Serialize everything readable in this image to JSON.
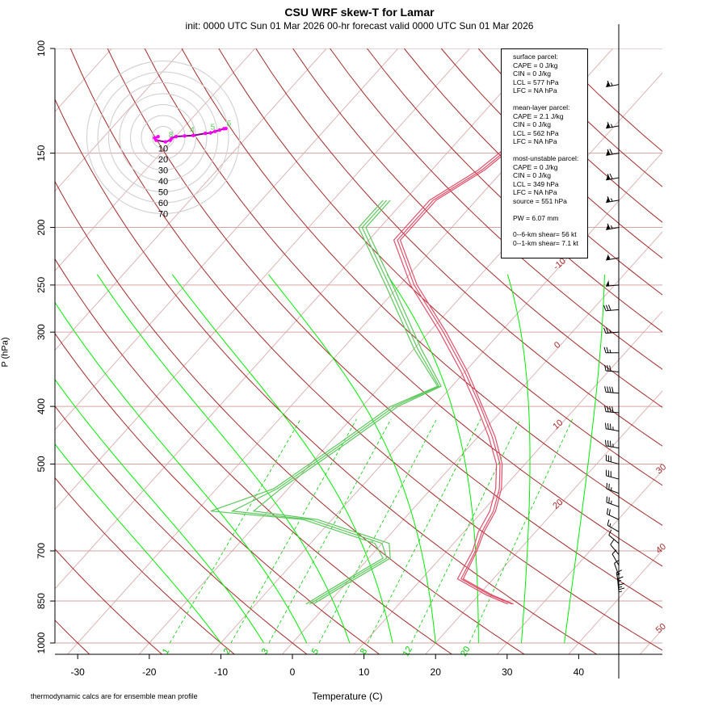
{
  "header": {
    "title": "CSU WRF skew-T for Lamar",
    "subtitle": "init: 0000 UTC Sun 01 Mar 2026     00-hr forecast valid 0000 UTC Sun 01 Mar 2026"
  },
  "footnote": "thermodynamic calcs are for ensemble mean profile",
  "info": {
    "surface_header": "surface parcel:",
    "surface_cape": "CAPE = 0 J/kg",
    "surface_cin": "CIN = 0 J/kg",
    "surface_lcl": "LCL = 577 hPa",
    "surface_lfc": "LFC = NA hPa",
    "ml_header": "mean-layer parcel:",
    "ml_cape": "CAPE = 2.1 J/kg",
    "ml_cin": "CIN = 0 J/kg",
    "ml_lcl": "LCL = 562 hPa",
    "ml_lfc": "LFC = NA hPa",
    "mu_header": "most-unstable parcel:",
    "mu_cape": "CAPE = 0 J/kg",
    "mu_cin": "CIN = 0 J/kg",
    "mu_lcl": "LCL = 349 hPa",
    "mu_lfc": "LFC = NA hPa",
    "mu_source": "source = 551 hPa",
    "pw": "PW =  6.07 mm",
    "shear06": "0--6-km shear= 56 kt",
    "shear01": "0--1-km shear= 7.1 kt"
  },
  "colors": {
    "isobar": "#d6a3a3",
    "isotherm": "#d6a3a3",
    "dry_adiabat": "#a52a2a",
    "moist_adiabat": "#00ee00",
    "mixing_ratio": "#00cc00",
    "temperature": "#e0506a",
    "dewpoint": "#5cc85c",
    "hodo_ring": "#cccccc",
    "hodo_trace": "#8b008b",
    "hodo_point": "#ff00ff"
  },
  "chart_data": {
    "type": "line",
    "xlabel": "Temperature (C)",
    "ylabel": "P (hPa)",
    "x_ticks": [
      -30,
      -20,
      -10,
      0,
      10,
      20,
      30,
      40
    ],
    "y_ticks": [
      100,
      150,
      200,
      250,
      300,
      400,
      500,
      700,
      850,
      1000
    ],
    "isotherm_labels": [
      "-10",
      "0",
      "10",
      "20",
      "30",
      "40",
      "50"
    ],
    "mixing_ratio_labels": [
      "1",
      "2",
      "3",
      "5",
      "8",
      "12",
      "20"
    ],
    "series": [
      {
        "profile": [
          [
            860,
            25.8
          ],
          [
            830,
            21.5
          ],
          [
            780,
            15.5
          ],
          [
            700,
            14
          ],
          [
            650,
            12.5
          ],
          [
            600,
            11.5
          ],
          [
            550,
            9.5
          ],
          [
            500,
            6.5
          ],
          [
            450,
            2
          ],
          [
            400,
            -3.5
          ],
          [
            350,
            -10
          ],
          [
            300,
            -18
          ],
          [
            250,
            -28
          ],
          [
            210,
            -36
          ],
          [
            180,
            -36
          ],
          [
            160,
            -33
          ],
          [
            130,
            -30.5
          ],
          [
            115,
            -30
          ]
        ]
      },
      {
        "profile": [
          [
            860,
            25.2
          ],
          [
            830,
            21
          ],
          [
            780,
            15
          ],
          [
            700,
            13.6
          ],
          [
            650,
            12
          ],
          [
            600,
            11
          ],
          [
            550,
            9
          ],
          [
            500,
            6
          ],
          [
            450,
            1.5
          ],
          [
            400,
            -4
          ],
          [
            350,
            -10.5
          ],
          [
            300,
            -18.5
          ],
          [
            250,
            -28.5
          ],
          [
            210,
            -36.5
          ],
          [
            180,
            -36.5
          ],
          [
            160,
            -33.5
          ],
          [
            130,
            -31
          ],
          [
            115,
            -30.5
          ]
        ]
      },
      {
        "profile": [
          [
            860,
            26
          ],
          [
            830,
            21.8
          ],
          [
            780,
            15.8
          ],
          [
            700,
            14.2
          ],
          [
            650,
            12.8
          ],
          [
            600,
            11.8
          ],
          [
            550,
            9.8
          ],
          [
            500,
            6.8
          ],
          [
            450,
            2.4
          ],
          [
            400,
            -3.2
          ],
          [
            350,
            -9.6
          ],
          [
            300,
            -17.6
          ],
          [
            250,
            -27.6
          ],
          [
            210,
            -35.6
          ],
          [
            180,
            -35.6
          ],
          [
            160,
            -32.6
          ],
          [
            130,
            -30.2
          ],
          [
            115,
            -29.6
          ]
        ]
      },
      {
        "profile": [
          [
            860,
            -2
          ],
          [
            800,
            0
          ],
          [
            720,
            3
          ],
          [
            680,
            1
          ],
          [
            620,
            -12
          ],
          [
            600,
            -22
          ],
          [
            550,
            -21
          ],
          [
            460,
            -17.5
          ],
          [
            400,
            -15
          ],
          [
            370,
            -11.5
          ],
          [
            320,
            -19
          ],
          [
            250,
            -31
          ],
          [
            200,
            -42
          ],
          [
            180,
            -42
          ]
        ]
      },
      {
        "profile": [
          [
            860,
            -3
          ],
          [
            800,
            -1
          ],
          [
            720,
            2
          ],
          [
            680,
            -1
          ],
          [
            620,
            -14
          ],
          [
            600,
            -28
          ],
          [
            550,
            -22
          ],
          [
            460,
            -18.5
          ],
          [
            400,
            -16
          ],
          [
            370,
            -12
          ],
          [
            320,
            -20
          ],
          [
            250,
            -32
          ],
          [
            200,
            -43
          ],
          [
            180,
            -43
          ]
        ]
      },
      {
        "profile": [
          [
            860,
            -2.5
          ],
          [
            800,
            -0.5
          ],
          [
            720,
            2.5
          ],
          [
            680,
            0
          ],
          [
            620,
            -13
          ],
          [
            600,
            -25
          ],
          [
            550,
            -21.5
          ],
          [
            460,
            -18
          ],
          [
            400,
            -15.5
          ],
          [
            370,
            -11.8
          ],
          [
            320,
            -19.5
          ],
          [
            250,
            -31.5
          ],
          [
            200,
            -42.5
          ],
          [
            180,
            -42.5
          ]
        ]
      }
    ],
    "wind_barbs": [
      {
        "p": 115,
        "kt": 65,
        "dir": 260
      },
      {
        "p": 135,
        "kt": 65,
        "dir": 260
      },
      {
        "p": 150,
        "kt": 70,
        "dir": 260
      },
      {
        "p": 165,
        "kt": 70,
        "dir": 260
      },
      {
        "p": 180,
        "kt": 65,
        "dir": 260
      },
      {
        "p": 200,
        "kt": 65,
        "dir": 260
      },
      {
        "p": 225,
        "kt": 55,
        "dir": 260
      },
      {
        "p": 250,
        "kt": 50,
        "dir": 265
      },
      {
        "p": 275,
        "kt": 30,
        "dir": 265
      },
      {
        "p": 300,
        "kt": 25,
        "dir": 265
      },
      {
        "p": 325,
        "kt": 25,
        "dir": 270
      },
      {
        "p": 350,
        "kt": 30,
        "dir": 275
      },
      {
        "p": 380,
        "kt": 40,
        "dir": 275
      },
      {
        "p": 410,
        "kt": 40,
        "dir": 275
      },
      {
        "p": 440,
        "kt": 35,
        "dir": 280
      },
      {
        "p": 470,
        "kt": 35,
        "dir": 280
      },
      {
        "p": 500,
        "kt": 30,
        "dir": 285
      },
      {
        "p": 530,
        "kt": 30,
        "dir": 285
      },
      {
        "p": 560,
        "kt": 25,
        "dir": 290
      },
      {
        "p": 590,
        "kt": 25,
        "dir": 290
      },
      {
        "p": 620,
        "kt": 20,
        "dir": 295
      },
      {
        "p": 650,
        "kt": 15,
        "dir": 300
      },
      {
        "p": 680,
        "kt": 10,
        "dir": 310
      },
      {
        "p": 710,
        "kt": 10,
        "dir": 320
      },
      {
        "p": 740,
        "kt": 10,
        "dir": 330
      },
      {
        "p": 770,
        "kt": 10,
        "dir": 340
      },
      {
        "p": 800,
        "kt": 15,
        "dir": 350
      },
      {
        "p": 820,
        "kt": 15,
        "dir": 355
      },
      {
        "p": 840,
        "kt": 15,
        "dir": 360
      },
      {
        "p": 855,
        "kt": 15,
        "dir": 360
      }
    ],
    "hodograph": {
      "rings": [
        "10",
        "20",
        "30",
        "40",
        "50",
        "60",
        "70"
      ],
      "profile": [
        [
          5,
          250
        ],
        [
          8,
          280
        ],
        [
          10,
          320
        ],
        [
          12,
          10
        ],
        [
          10,
          40
        ],
        [
          8,
          80
        ],
        [
          12,
          100
        ],
        [
          20,
          100
        ],
        [
          28,
          100
        ],
        [
          40,
          105
        ],
        [
          45,
          105
        ],
        [
          50,
          108
        ],
        [
          55,
          110
        ],
        [
          60,
          112
        ],
        [
          62,
          112
        ]
      ],
      "labels": [
        {
          "t": "8",
          "kt": 10,
          "dir": 30
        },
        {
          "t": "4",
          "kt": 25,
          "dir": 100
        },
        {
          "t": "5",
          "kt": 45,
          "dir": 105
        },
        {
          "t": "6",
          "kt": 62,
          "dir": 110
        }
      ]
    }
  }
}
